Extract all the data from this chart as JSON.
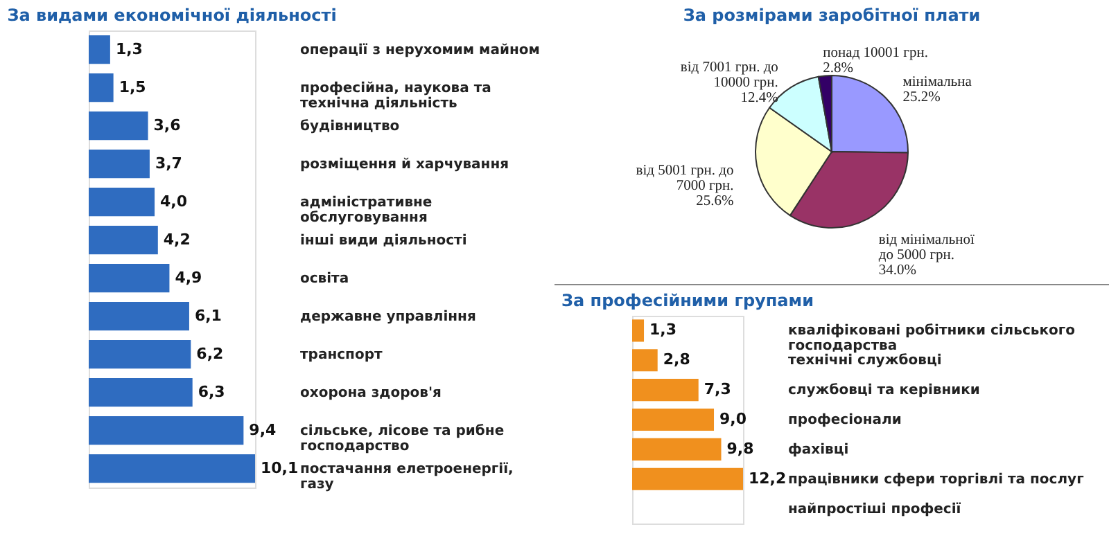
{
  "chart_data": [
    {
      "type": "bar",
      "orientation": "horizontal",
      "title": "За видами економічної діяльності",
      "color": "#2f6cc0",
      "categories": [
        "операції з нерухомим майном",
        "професійна, наукова та технічна діяльність",
        "будівництво",
        "розміщення й харчування",
        "адміністративне обслуговування",
        "інші види діяльності",
        "освіта",
        "державне управління",
        "транспорт",
        "охорона здоров'я",
        "сільське, лісове та рибне господарство",
        "постачання елетроенергії, газу"
      ],
      "values": [
        1.3,
        1.5,
        3.6,
        3.7,
        4.0,
        4.2,
        4.9,
        6.1,
        6.2,
        6.3,
        9.4,
        10.1
      ],
      "value_labels": [
        "1,3",
        "1,5",
        "3,6",
        "3,7",
        "4,0",
        "4,2",
        "4,9",
        "6,1",
        "6,2",
        "6,3",
        "9,4",
        "10,1"
      ]
    },
    {
      "type": "pie",
      "title": "За розмірами заробітної плати",
      "categories": [
        "мінімальна",
        "від мінімальної до 5000 грн.",
        "від 5001 грн. до 7000 грн.",
        "від 7001 грн. до 10000 грн.",
        "понад 10001 грн."
      ],
      "values": [
        25.2,
        34.0,
        25.6,
        12.4,
        2.8
      ],
      "value_labels": [
        "25.2%",
        "34.0%",
        "25.6%",
        "12.4%",
        "2.8%"
      ],
      "colors": [
        "#9999ff",
        "#993366",
        "#ffffcc",
        "#ccffff",
        "#330066"
      ]
    },
    {
      "type": "bar",
      "orientation": "horizontal",
      "title": "За професійними групами",
      "color": "#f0901e",
      "categories": [
        "кваліфіковані робітники сільського господарства",
        "технічні службовці",
        "службовці та керівники",
        "професіонали",
        "фахівці",
        "працівники сфери торгівлі та послуг",
        "найпростіші професії"
      ],
      "values": [
        1.3,
        2.8,
        7.3,
        9.0,
        9.8,
        12.2,
        null
      ],
      "value_labels": [
        "1,3",
        "2,8",
        "7,3",
        "9,0",
        "9,8",
        "12,2",
        null
      ]
    }
  ]
}
